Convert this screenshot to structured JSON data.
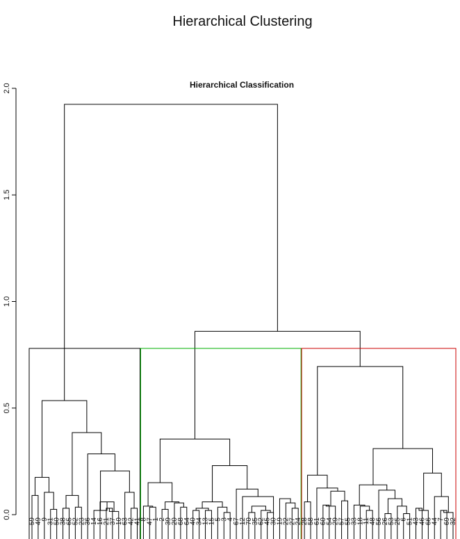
{
  "page_title": "Hierarchical Clustering",
  "chart_data": {
    "type": "dendrogram",
    "title": "Hierarchical Classification",
    "ylim": [
      0,
      2.0
    ],
    "yticks": [
      "0.0",
      "0.5",
      "1.0",
      "1.5",
      "2.0"
    ],
    "leaf_order": [
      "59",
      "49",
      "9",
      "31",
      "50",
      "38",
      "65",
      "52",
      "23",
      "36",
      "14",
      "16",
      "21",
      "37",
      "10",
      "63",
      "42",
      "41",
      "8",
      "47",
      "1",
      "2",
      "39",
      "20",
      "68",
      "64",
      "40",
      "34",
      "13",
      "15",
      "5",
      "3",
      "4",
      "67",
      "12",
      "70",
      "35",
      "62",
      "45",
      "30",
      "19",
      "22",
      "27",
      "24",
      "28",
      "58",
      "61",
      "60",
      "54",
      "29",
      "57",
      "55",
      "33",
      "18",
      "11",
      "48",
      "56",
      "26",
      "53",
      "25",
      "6",
      "51",
      "43",
      "46",
      "66",
      "44",
      "7",
      "69",
      "32"
    ],
    "merges": [
      {
        "a": [
          "59",
          "49"
        ],
        "h": 0.09
      },
      {
        "a": [
          "31",
          "50"
        ],
        "h": 0.025
      },
      {
        "a": [
          "9",
          "m:31-50"
        ],
        "h": 0.105
      },
      {
        "a": [
          "m:59-49",
          "m:9-31-50"
        ],
        "h": 0.175
      },
      {
        "a": [
          "38",
          "65"
        ],
        "h": 0.03
      },
      {
        "a": [
          "52",
          "23"
        ],
        "h": 0.035
      },
      {
        "a": [
          "m:38-65",
          "m:52-23"
        ],
        "h": 0.09
      },
      {
        "a": [
          "21",
          "37"
        ],
        "h": 0.03
      },
      {
        "a": [
          "m:21-37",
          "10"
        ],
        "h": 0.015
      },
      {
        "a": [
          "16",
          "m:21-37-10"
        ],
        "h": 0.06
      },
      {
        "a": [
          "14",
          "m:16-21-37-10"
        ],
        "h": 0.02
      },
      {
        "a": [
          "42",
          "41"
        ],
        "h": 0.03
      },
      {
        "a": [
          "63",
          "m:42-41"
        ],
        "h": 0.105
      },
      {
        "a": [
          "m:14..10",
          "m:63-42-41"
        ],
        "h": 0.205
      },
      {
        "a": [
          "36",
          "m:14..41"
        ],
        "h": 0.285
      },
      {
        "a": [
          "m:38..23",
          "m:36..41"
        ],
        "h": 0.385
      },
      {
        "a": [
          "m:59..50",
          "m:38..41"
        ],
        "h": 0.535
      },
      {
        "a": [
          "47",
          "1"
        ],
        "h": 0.035
      },
      {
        "a": [
          "8",
          "m:47-1"
        ],
        "h": 0.04
      },
      {
        "a": [
          "2",
          "39"
        ],
        "h": 0.025
      },
      {
        "a": [
          "68",
          "64"
        ],
        "h": 0.035
      },
      {
        "a": [
          "20",
          "m:68-64"
        ],
        "h": 0.055
      },
      {
        "a": [
          "m:2-39",
          "m:20-68-64"
        ],
        "h": 0.06
      },
      {
        "a": [
          "m:8-47-1",
          "m:2..64"
        ],
        "h": 0.15
      },
      {
        "a": [
          "40",
          "34"
        ],
        "h": 0.02
      },
      {
        "a": [
          "13",
          "15"
        ],
        "h": 0.02
      },
      {
        "a": [
          "m:40-34",
          "m:13-15"
        ],
        "h": 0.03
      },
      {
        "a": [
          "3",
          "4"
        ],
        "h": 0.01
      },
      {
        "a": [
          "5",
          "m:3-4"
        ],
        "h": 0.035
      },
      {
        "a": [
          "m:40..15",
          "m:5-3-4"
        ],
        "h": 0.06
      },
      {
        "a": [
          "70",
          "35"
        ],
        "h": 0.01
      },
      {
        "a": [
          "45",
          "30"
        ],
        "h": 0.01
      },
      {
        "a": [
          "62",
          "m:45-30"
        ],
        "h": 0.02
      },
      {
        "a": [
          "m:70-35",
          "m:62-45-30"
        ],
        "h": 0.04
      },
      {
        "a": [
          "27",
          "24"
        ],
        "h": 0.03
      },
      {
        "a": [
          "22",
          "m:27-24"
        ],
        "h": 0.055
      },
      {
        "a": [
          "19",
          "m:22-27-24"
        ],
        "h": 0.075
      },
      {
        "a": [
          "12",
          "m:70..24"
        ],
        "h": 0.085
      },
      {
        "a": [
          "67",
          "m:12..24"
        ],
        "h": 0.12
      },
      {
        "a": [
          "m:40..4",
          "m:67..24"
        ],
        "h": 0.23
      },
      {
        "a": [
          "m:8..64",
          "m:40..24"
        ],
        "h": 0.355
      },
      {
        "a": [
          "28",
          "58"
        ],
        "h": 0.06
      },
      {
        "a": [
          "60",
          "54"
        ],
        "h": 0.045
      },
      {
        "a": [
          "m:60-54",
          "29"
        ],
        "h": 0.04
      },
      {
        "a": [
          "57",
          "55"
        ],
        "h": 0.065
      },
      {
        "a": [
          "m:60-54-29",
          "m:57-55"
        ],
        "h": 0.11
      },
      {
        "a": [
          "61",
          "m:60..55"
        ],
        "h": 0.125
      },
      {
        "a": [
          "m:28-58",
          "m:61..55"
        ],
        "h": 0.185
      },
      {
        "a": [
          "11",
          "48"
        ],
        "h": 0.02
      },
      {
        "a": [
          "18",
          "m:11-48"
        ],
        "h": 0.04
      },
      {
        "a": [
          "33",
          "m:18-11-48"
        ],
        "h": 0.045
      },
      {
        "a": [
          "26",
          "53"
        ],
        "h": 0.005
      },
      {
        "a": [
          "6",
          "51"
        ],
        "h": 0.005
      },
      {
        "a": [
          "25",
          "m:6-51"
        ],
        "h": 0.04
      },
      {
        "a": [
          "m:26-53",
          "m:25-6-51"
        ],
        "h": 0.075
      },
      {
        "a": [
          "56",
          "m:26..51"
        ],
        "h": 0.115
      },
      {
        "a": [
          "m:33..48",
          "m:56..51"
        ],
        "h": 0.14
      },
      {
        "a": [
          "7",
          "69"
        ],
        "h": 0.02
      },
      {
        "a": [
          "m:7-69",
          "32"
        ],
        "h": 0.01
      },
      {
        "a": [
          "44",
          "m:7-69-32"
        ],
        "h": 0.085
      },
      {
        "a": [
          "43",
          "46"
        ],
        "h": 0.03
      },
      {
        "a": [
          "m:43-46",
          "66"
        ],
        "h": 0.02
      },
      {
        "a": [
          "m:43-46-66",
          "m:44..32"
        ],
        "h": 0.195
      },
      {
        "a": [
          "m:33..51",
          "m:43..32"
        ],
        "h": 0.31
      },
      {
        "a": [
          "m:28..55",
          "m:33..32"
        ],
        "h": 0.695
      },
      {
        "a": [
          "m:8..24",
          "m:28..32"
        ],
        "h": 0.86
      },
      {
        "a": [
          "m:59..41",
          "m:8..32"
        ],
        "h": 1.925
      }
    ],
    "cluster_boxes": [
      {
        "from": "59",
        "to": "41",
        "color": "#000000"
      },
      {
        "from": "8",
        "to": "24",
        "color": "#00b000"
      },
      {
        "from": "28",
        "to": "32",
        "color": "#cc0000"
      }
    ],
    "box_height": 0.78
  }
}
